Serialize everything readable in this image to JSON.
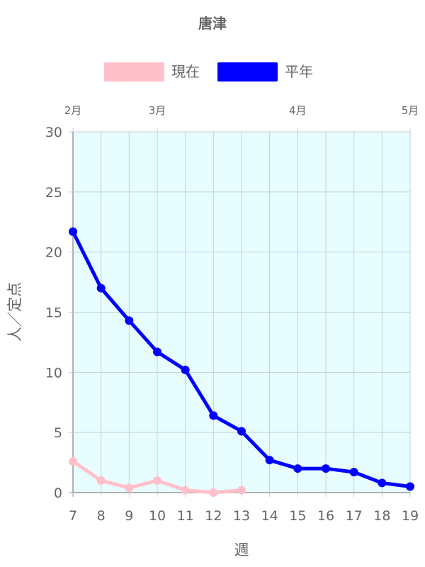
{
  "chart_data": {
    "type": "line",
    "title": "唐津",
    "xlabel": "週",
    "ylabel": "人／定点",
    "ylim": [
      0,
      30
    ],
    "yticks": [
      0,
      5,
      10,
      15,
      20,
      25,
      30
    ],
    "x": [
      7,
      8,
      9,
      10,
      11,
      12,
      13,
      14,
      15,
      16,
      17,
      18,
      19
    ],
    "xlim": [
      7,
      19
    ],
    "month_labels": [
      {
        "label": "2月",
        "week": 7
      },
      {
        "label": "3月",
        "week": 10
      },
      {
        "label": "4月",
        "week": 15
      },
      {
        "label": "5月",
        "week": 19
      }
    ],
    "grid": true,
    "plot_background": "#e8fdff",
    "legend_position": "top",
    "series": [
      {
        "name": "現在",
        "color": "#ffc0cb",
        "values": [
          2.6,
          1.0,
          0.4,
          1.0,
          0.2,
          0.0,
          0.2,
          null,
          null,
          null,
          null,
          null,
          null
        ]
      },
      {
        "name": "平年",
        "color": "#0000ff",
        "values": [
          21.7,
          17.0,
          14.3,
          11.7,
          10.2,
          6.4,
          5.1,
          2.7,
          2.0,
          2.0,
          1.7,
          0.8,
          0.5
        ]
      }
    ]
  }
}
